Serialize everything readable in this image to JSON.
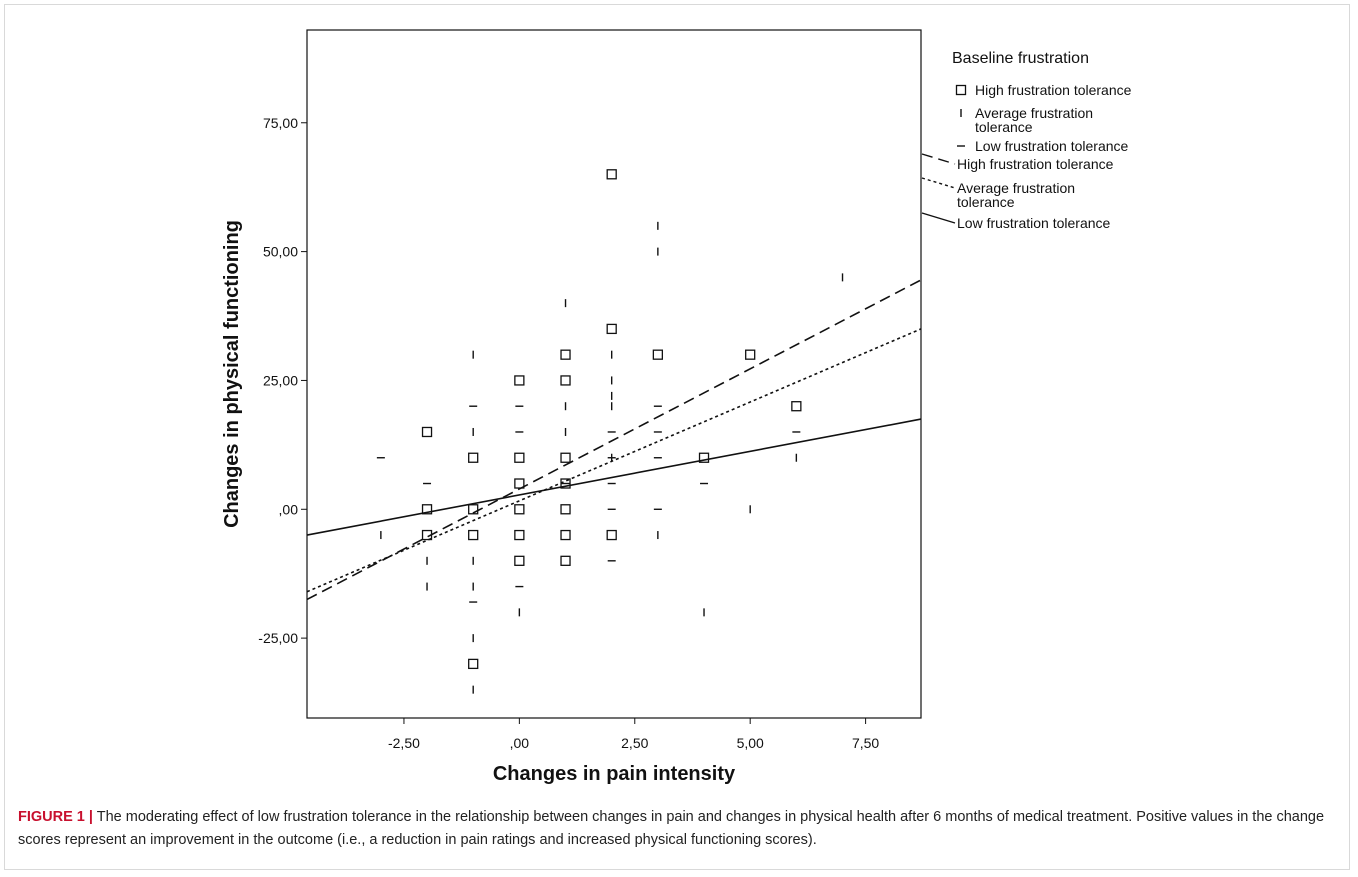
{
  "chart_data": {
    "type": "scatter",
    "xlabel": "Changes in pain intensity",
    "ylabel": "Changes in physical functioning",
    "xlim": [
      -4.6,
      8.7
    ],
    "ylim": [
      -40.5,
      93
    ],
    "xticks": [
      -2.5,
      0,
      2.5,
      5,
      7.5
    ],
    "xtick_labels": [
      "-2,50",
      ",00",
      "2,50",
      "5,00",
      "7,50"
    ],
    "yticks": [
      -25,
      0,
      25,
      50,
      75
    ],
    "ytick_labels": [
      "-25,00",
      ",00",
      "25,00",
      "50,00",
      "75,00"
    ],
    "grid": false,
    "legend_position": "right",
    "legend_title": "Baseline frustration",
    "series": [
      {
        "name": "High frustration tolerance",
        "marker": "square",
        "points": [
          [
            -2,
            15
          ],
          [
            -2,
            0
          ],
          [
            -2,
            -5
          ],
          [
            -1,
            10
          ],
          [
            -1,
            0
          ],
          [
            -1,
            -5
          ],
          [
            -1,
            -30
          ],
          [
            0,
            25
          ],
          [
            0,
            10
          ],
          [
            0,
            5
          ],
          [
            0,
            0
          ],
          [
            0,
            -5
          ],
          [
            0,
            -10
          ],
          [
            1,
            30
          ],
          [
            1,
            25
          ],
          [
            1,
            10
          ],
          [
            1,
            5
          ],
          [
            1,
            0
          ],
          [
            1,
            -5
          ],
          [
            1,
            -10
          ],
          [
            2,
            65
          ],
          [
            2,
            35
          ],
          [
            2,
            -5
          ],
          [
            3,
            30
          ],
          [
            4,
            10
          ],
          [
            5,
            30
          ],
          [
            6,
            20
          ]
        ]
      },
      {
        "name": "Average frustration tolerance",
        "marker": "vbar",
        "points": [
          [
            -3,
            -5
          ],
          [
            -2,
            -10
          ],
          [
            -2,
            -15
          ],
          [
            -1,
            30
          ],
          [
            -1,
            15
          ],
          [
            -1,
            -10
          ],
          [
            -1,
            -15
          ],
          [
            -1,
            -25
          ],
          [
            -1,
            -35
          ],
          [
            0,
            -20
          ],
          [
            1,
            40
          ],
          [
            1,
            20
          ],
          [
            1,
            15
          ],
          [
            2,
            30
          ],
          [
            2,
            25
          ],
          [
            2,
            22
          ],
          [
            2,
            20
          ],
          [
            2,
            10
          ],
          [
            3,
            55
          ],
          [
            3,
            50
          ],
          [
            3,
            -5
          ],
          [
            4,
            -20
          ],
          [
            5,
            0
          ],
          [
            6,
            10
          ],
          [
            7,
            45
          ]
        ]
      },
      {
        "name": "Low frustration tolerance",
        "marker": "hbar",
        "points": [
          [
            -3,
            10
          ],
          [
            -2,
            5
          ],
          [
            -1,
            20
          ],
          [
            -1,
            -18
          ],
          [
            0,
            20
          ],
          [
            0,
            15
          ],
          [
            0,
            -15
          ],
          [
            1,
            5
          ],
          [
            2,
            15
          ],
          [
            2,
            10
          ],
          [
            2,
            5
          ],
          [
            2,
            0
          ],
          [
            2,
            -10
          ],
          [
            3,
            20
          ],
          [
            3,
            15
          ],
          [
            3,
            10
          ],
          [
            3,
            0
          ],
          [
            4,
            5
          ],
          [
            6,
            15
          ]
        ]
      }
    ],
    "fit_lines": [
      {
        "name": "High frustration tolerance",
        "style": "dashed",
        "x": [
          -4.6,
          8.7
        ],
        "y": [
          -17.5,
          44.5
        ]
      },
      {
        "name": "Average frustration tolerance",
        "style": "dotted",
        "x": [
          -4.6,
          8.7
        ],
        "y": [
          -16,
          35
        ]
      },
      {
        "name": "Low frustration tolerance",
        "style": "solid",
        "x": [
          -4.6,
          8.7
        ],
        "y": [
          -5,
          17.5
        ]
      }
    ]
  },
  "caption": {
    "label": "FIGURE 1 |",
    "text": " The moderating effect of low frustration tolerance in the relationship between changes in pain and changes in physical health after 6 months of medical treatment. Positive values in the change scores represent an improvement in the outcome (i.e., a reduction in pain ratings and increased physical functioning scores)."
  }
}
